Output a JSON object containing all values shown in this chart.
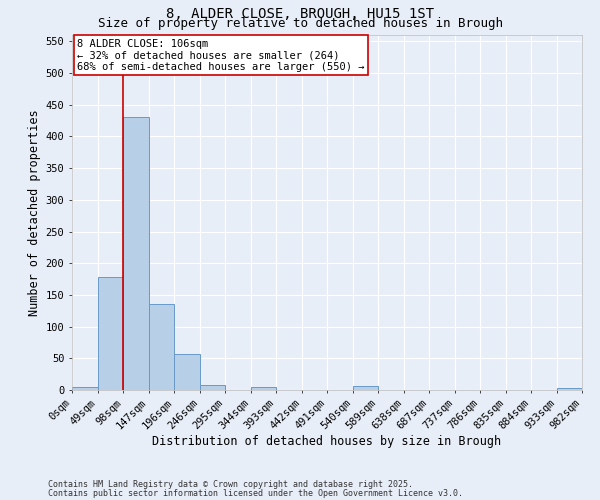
{
  "title": "8, ALDER CLOSE, BROUGH, HU15 1ST",
  "subtitle": "Size of property relative to detached houses in Brough",
  "xlabel": "Distribution of detached houses by size in Brough",
  "ylabel": "Number of detached properties",
  "bar_values": [
    5,
    178,
    430,
    136,
    57,
    8,
    0,
    5,
    0,
    0,
    0,
    6,
    0,
    0,
    0,
    0,
    0,
    0,
    0,
    3
  ],
  "bin_labels": [
    "0sqm",
    "49sqm",
    "98sqm",
    "147sqm",
    "196sqm",
    "246sqm",
    "295sqm",
    "344sqm",
    "393sqm",
    "442sqm",
    "491sqm",
    "540sqm",
    "589sqm",
    "638sqm",
    "687sqm",
    "737sqm",
    "786sqm",
    "835sqm",
    "884sqm",
    "933sqm",
    "982sqm"
  ],
  "bar_color": "#b8cfe8",
  "bar_edge_color": "#6899c8",
  "bg_color": "#e8eef8",
  "grid_color": "#ffffff",
  "vline_x": 2,
  "vline_color": "#cc0000",
  "annotation_text": "8 ALDER CLOSE: 106sqm\n← 32% of detached houses are smaller (264)\n68% of semi-detached houses are larger (550) →",
  "annotation_box_color": "#ffffff",
  "annotation_box_edge": "#cc0000",
  "ylim": [
    0,
    560
  ],
  "yticks": [
    0,
    50,
    100,
    150,
    200,
    250,
    300,
    350,
    400,
    450,
    500,
    550
  ],
  "footer_line1": "Contains HM Land Registry data © Crown copyright and database right 2025.",
  "footer_line2": "Contains public sector information licensed under the Open Government Licence v3.0.",
  "title_fontsize": 10,
  "subtitle_fontsize": 9,
  "label_fontsize": 8.5,
  "tick_fontsize": 7.5,
  "annotation_fontsize": 7.5,
  "footer_fontsize": 6.0
}
